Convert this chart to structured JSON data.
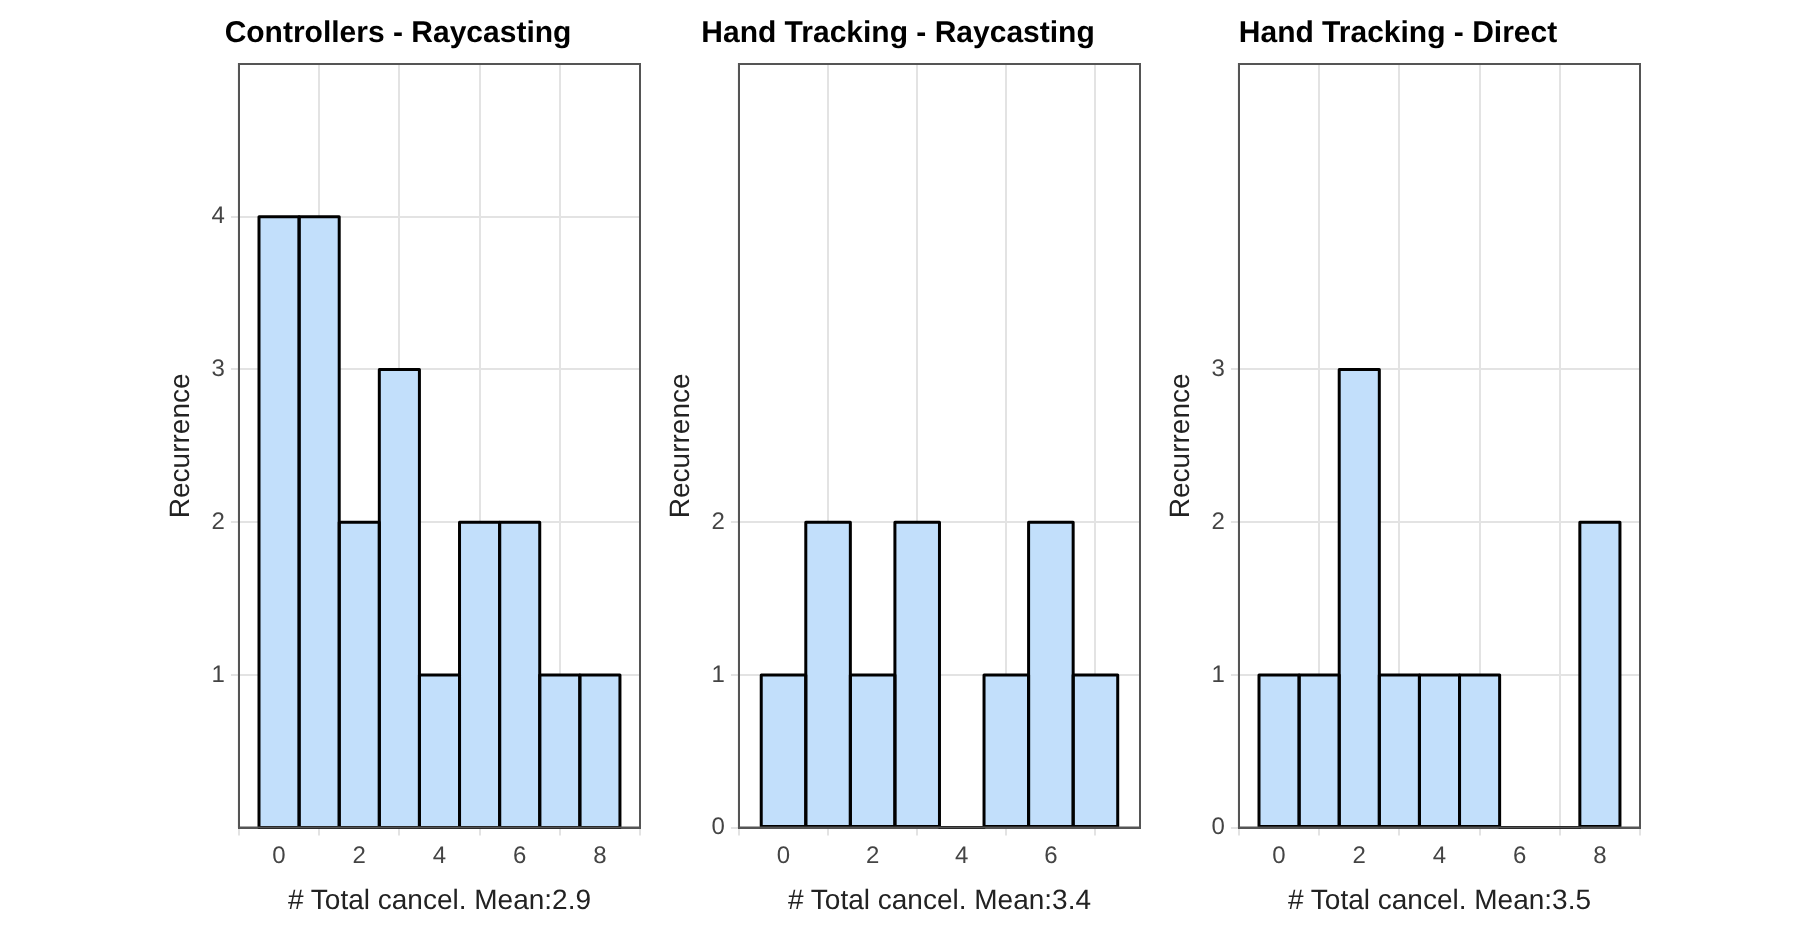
{
  "chart_data": [
    {
      "type": "histogram",
      "title": "Controllers - Raycasting",
      "xlabel": "# Total cancel. Mean:2.9",
      "ylabel": "Recurrence",
      "bins": [
        -0.5,
        0.5,
        1.5,
        2.5,
        3.5,
        4.5,
        5.5,
        6.5,
        7.5,
        8.5
      ],
      "values": [
        4,
        4,
        2,
        3,
        1,
        2,
        2,
        1,
        1
      ],
      "color": "#c2dffb",
      "xlim": [
        -1,
        9
      ],
      "xticks": [
        0,
        2,
        4,
        6,
        8
      ],
      "ylim": [
        0,
        5
      ],
      "yticks": [
        1,
        2,
        3,
        4
      ],
      "grid": true,
      "legend": false
    },
    {
      "type": "histogram",
      "title": "Hand Tracking - Raycasting",
      "xlabel": "# Total cancel. Mean:3.4",
      "ylabel": "Recurrence",
      "bins": [
        -0.5,
        0.5,
        1.5,
        2.5,
        3.5,
        4.5,
        5.5,
        6.5,
        7.5
      ],
      "values": [
        1,
        2,
        1,
        2,
        0,
        1,
        2,
        1
      ],
      "color": "#c2dffb",
      "xlim": [
        -1,
        8
      ],
      "xticks": [
        0,
        2,
        4,
        6
      ],
      "ylim": [
        0,
        5
      ],
      "yticks": [
        0,
        1,
        2
      ],
      "grid": true,
      "legend": false
    },
    {
      "type": "histogram",
      "title": "Hand Tracking - Direct",
      "xlabel": "# Total cancel. Mean:3.5",
      "ylabel": "Recurrence",
      "bins": [
        -0.5,
        0.5,
        1.5,
        2.5,
        3.5,
        4.5,
        5.5,
        6.5,
        7.5,
        8.5
      ],
      "values": [
        1,
        1,
        3,
        1,
        1,
        1,
        0,
        0,
        2
      ],
      "color": "#c2dffb",
      "xlim": [
        -1,
        9
      ],
      "xticks": [
        0,
        2,
        4,
        6,
        8
      ],
      "ylim": [
        0,
        5
      ],
      "yticks": [
        0,
        1,
        2,
        3
      ],
      "grid": true,
      "legend": false
    }
  ]
}
